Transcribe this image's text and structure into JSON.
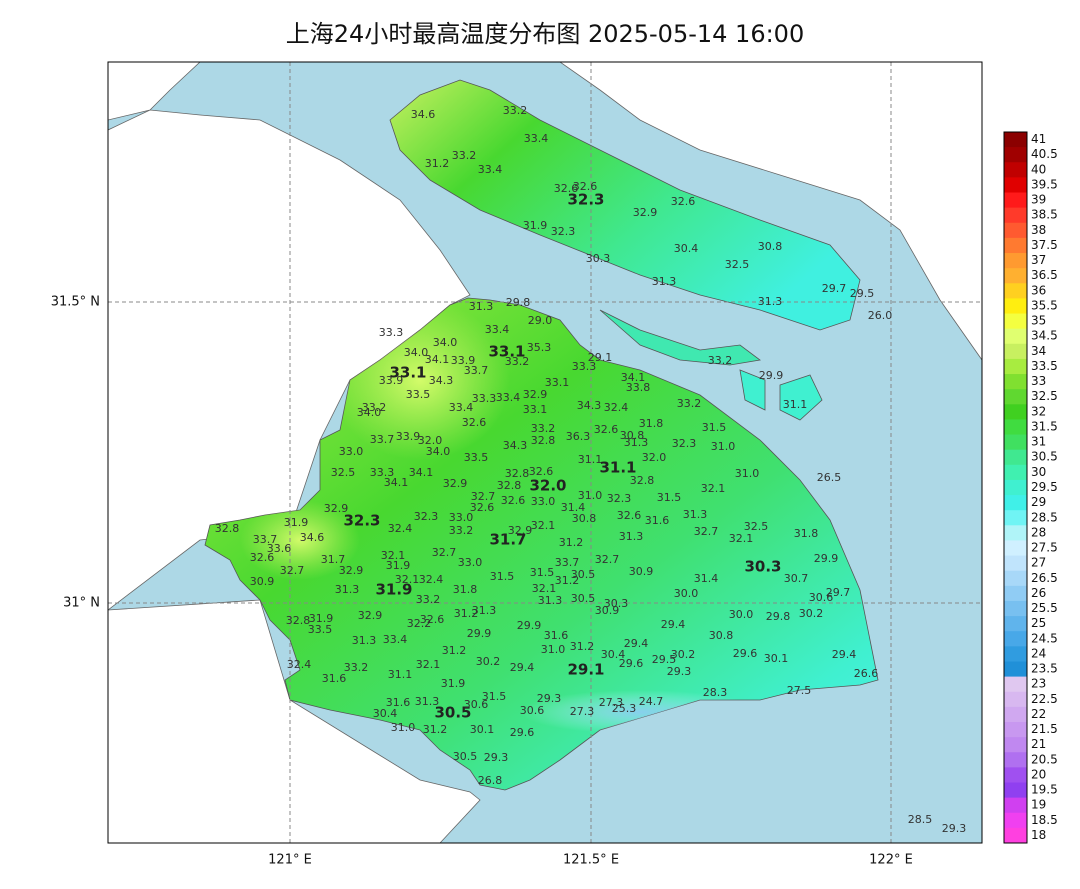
{
  "title": "上海24小时最高温度分布图 2025-05-14 16:00",
  "axes": {
    "x_labels": [
      "121° E",
      "121.5° E",
      "122° E"
    ],
    "y_labels": [
      "31.5° N",
      "31° N"
    ]
  },
  "major_stations": [
    "33.1",
    "33.1",
    "32.3",
    "32.3",
    "32.0",
    "31.7",
    "31.1",
    "31.9",
    "30.3",
    "29.1",
    "30.5"
  ],
  "stations": [
    "34.6",
    "33.2",
    "33.4",
    "33.2",
    "31.2",
    "33.4",
    "32.6",
    "32.6",
    "32.9",
    "32.6",
    "31.9",
    "32.3",
    "30.4",
    "30.8",
    "30.3",
    "32.5",
    "31.3",
    "29.7",
    "29.5",
    "31.3",
    "26.0",
    "29.8",
    "31.3",
    "29.0",
    "33.4",
    "33.3",
    "34.0",
    "35.3",
    "34.0",
    "29.1",
    "34.1",
    "33.9",
    "33.2",
    "33.7",
    "33.2",
    "33.3",
    "34.3",
    "33.9",
    "34.1",
    "33.1",
    "29.9",
    "33.8",
    "33.5",
    "32.9",
    "33.4",
    "33.3",
    "33.2",
    "33.2",
    "33.4",
    "32.4",
    "33.1",
    "34.3",
    "31.1",
    "34.0",
    "31.8",
    "32.6",
    "31.5",
    "33.2",
    "33.7",
    "33.9",
    "32.0",
    "36.3",
    "32.6",
    "30.8",
    "32.8",
    "34.3",
    "31.3",
    "32.3",
    "31.0",
    "33.0",
    "34.0",
    "33.5",
    "32.0",
    "31.1",
    "31.0",
    "26.5",
    "32.5",
    "34.1",
    "33.3",
    "32.8",
    "32.6",
    "34.1",
    "32.9",
    "32.8",
    "32.8",
    "32.1",
    "31.0",
    "32.7",
    "32.3",
    "31.5",
    "32.6",
    "33.0",
    "31.4",
    "32.9",
    "31.3",
    "32.6",
    "32.6",
    "33.0",
    "32.8",
    "31.9",
    "30.8",
    "31.6",
    "32.5",
    "32.4",
    "32.3",
    "33.2",
    "32.1",
    "34.6",
    "32.7",
    "32.9",
    "33.7",
    "32.1",
    "31.3",
    "31.8",
    "33.6",
    "31.2",
    "32.6",
    "32.1",
    "32.7",
    "29.9",
    "31.7",
    "33.0",
    "33.7",
    "32.7",
    "32.7",
    "32.9",
    "31.9",
    "31.5",
    "30.9",
    "30.5",
    "31.5",
    "32.1",
    "32.4",
    "31.2",
    "30.9",
    "31.4",
    "30.7",
    "29.7",
    "31.3",
    "31.8",
    "30.0",
    "32.1",
    "30.6",
    "33.2",
    "30.5",
    "31.3",
    "30.3",
    "31.3",
    "30.9",
    "32.9",
    "31.2",
    "30.0",
    "29.8",
    "30.2",
    "32.8",
    "31.9",
    "32.6",
    "32.2",
    "33.5",
    "29.9",
    "29.4",
    "29.9",
    "31.6",
    "30.8",
    "31.3",
    "33.4",
    "29.4",
    "31.2",
    "31.0",
    "31.2",
    "30.4",
    "29.6",
    "30.2",
    "29.4",
    "30.2",
    "29.5",
    "32.4",
    "33.2",
    "32.1",
    "29.6",
    "30.1",
    "29.4",
    "29.3",
    "26.6",
    "31.1",
    "31.6",
    "31.9",
    "27.5",
    "28.3",
    "31.5",
    "29.3",
    "31.6",
    "31.3",
    "30.6",
    "24.7",
    "27.3",
    "25.3",
    "30.4",
    "30.6",
    "27.3",
    "31.0",
    "31.2",
    "30.1",
    "29.6",
    "30.5",
    "29.3",
    "26.8",
    "28.5",
    "29.3"
  ],
  "colorbar": {
    "ticks": [
      41,
      40.5,
      40,
      39.5,
      39,
      38.5,
      38,
      37.5,
      37,
      36.5,
      36,
      35.5,
      35,
      34.5,
      34,
      33.5,
      33,
      32.5,
      32,
      31.5,
      31,
      30.5,
      30,
      29.5,
      29,
      28.5,
      28,
      27.5,
      27,
      26.5,
      26,
      25.5,
      25,
      24.5,
      24,
      23.5,
      23,
      22.5,
      22,
      21.5,
      21,
      20.5,
      20,
      19.5,
      19,
      18.5,
      18
    ],
    "colors": [
      "#8b0000",
      "#a00000",
      "#c00000",
      "#e00000",
      "#ff1a1a",
      "#ff3a2a",
      "#ff5a30",
      "#ff7a30",
      "#ff9a30",
      "#ffb030",
      "#ffd020",
      "#ffee10",
      "#f4ff40",
      "#e0ff70",
      "#c8f060",
      "#a8ec40",
      "#80e030",
      "#60d830",
      "#40d020",
      "#40dc40",
      "#40e060",
      "#40e890",
      "#40f0b0",
      "#40f0d0",
      "#40f0e8",
      "#70f4f4",
      "#b0f4f8",
      "#d0f0ff",
      "#c0e4fc",
      "#a8d8f8",
      "#90ccf4",
      "#78c0f0",
      "#60b4ec",
      "#48a8e8",
      "#309ce0",
      "#2090d8",
      "#e0c8f0",
      "#d8b8f0",
      "#d0a8f0",
      "#c898f0",
      "#c088f0",
      "#b070f0",
      "#a050f0",
      "#9040f0",
      "#d040f0",
      "#f040f0",
      "#ff40e0"
    ]
  }
}
